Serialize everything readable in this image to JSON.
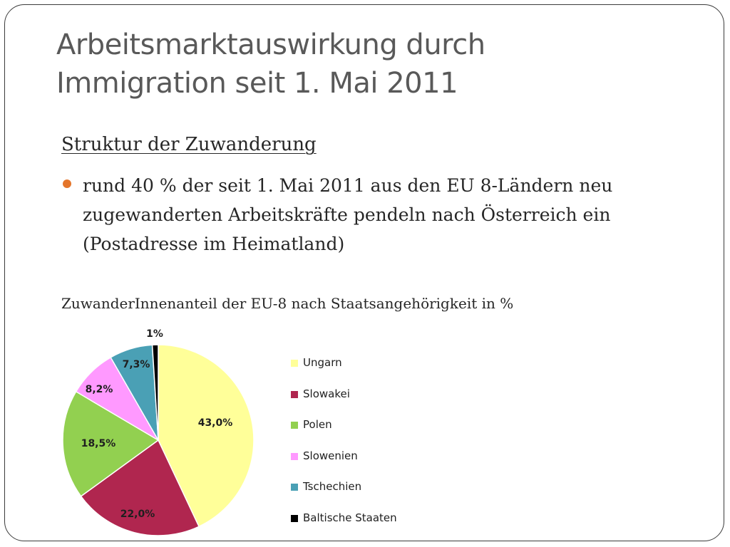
{
  "slide": {
    "title_line1": "Arbeitsmarktauswirkung durch",
    "title_line2": "Immigration seit 1. Mai 2011",
    "subheading": "Struktur der Zuwanderung",
    "bullet": "rund 40 % der seit 1. Mai 2011 aus den EU 8-Ländern neu zugewanderten Arbeitskräfte pendeln nach Österreich ein (Postadresse im Heimatland)",
    "chart_caption": "ZuwanderInnenanteil der EU-8 nach Staatsangehörigkeit in %"
  },
  "chart_data": {
    "type": "pie",
    "title": "ZuwanderInnenanteil der EU-8 nach Staatsangehörigkeit in %",
    "unit": "%",
    "legend_position": "right",
    "slices": [
      {
        "label": "Ungarn",
        "value": 43.0,
        "display": "43,0%",
        "color": "#ffff99"
      },
      {
        "label": "Slowakei",
        "value": 22.0,
        "display": "22,0%",
        "color": "#b0264f"
      },
      {
        "label": "Polen",
        "value": 18.5,
        "display": "18,5%",
        "color": "#92d050"
      },
      {
        "label": "Slowenien",
        "value": 8.2,
        "display": "8,2%",
        "color": "#ff99ff"
      },
      {
        "label": "Tschechien",
        "value": 7.3,
        "display": "7,3%",
        "color": "#4aa0b5"
      },
      {
        "label": "Baltische Staaten",
        "value": 1.0,
        "display": "1%",
        "color": "#000000"
      }
    ]
  }
}
